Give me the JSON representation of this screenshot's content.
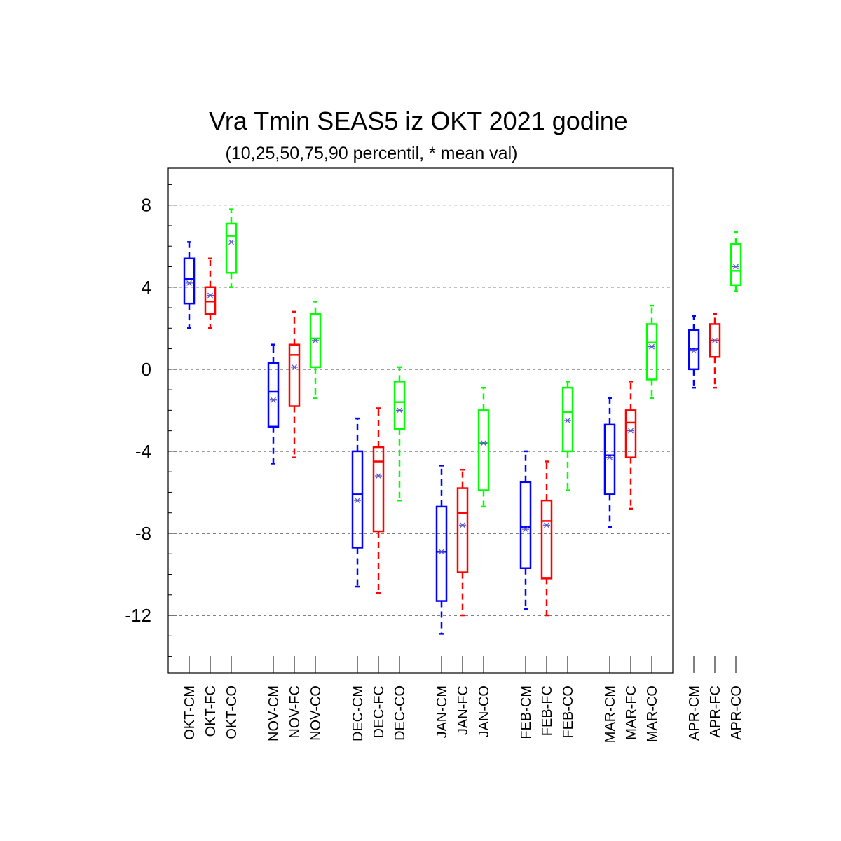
{
  "chart_data": {
    "type": "boxplot",
    "title": "Vra Tmin SEAS5 iz OKT 2021 godine",
    "subtitle": "(10,25,50,75,90 percentil, * mean val)",
    "xlabel": "",
    "ylabel": "",
    "ylim": [
      -14.8,
      9.8
    ],
    "yticks": [
      8,
      4,
      0,
      -4,
      -8,
      -12
    ],
    "ytick_labels": [
      "8",
      "4",
      "0",
      "-4",
      "-8",
      "-12"
    ],
    "grid": "dashed horizontal at major ticks",
    "series_colors": {
      "CM": "#0000ff",
      "FC": "#ff0000",
      "CO": "#00ff00"
    },
    "mean_marker_color": "#5555cc",
    "categories": [
      "OKT-CM",
      "OKT-FC",
      "OKT-CO",
      "NOV-CM",
      "NOV-FC",
      "NOV-CO",
      "DEC-CM",
      "DEC-FC",
      "DEC-CO",
      "JAN-CM",
      "JAN-FC",
      "JAN-CO",
      "FEB-CM",
      "FEB-FC",
      "FEB-CO",
      "MAR-CM",
      "MAR-FC",
      "MAR-CO",
      "APR-CM",
      "APR-FC",
      "APR-CO"
    ],
    "boxes": [
      {
        "label": "OKT-CM",
        "series": "CM",
        "p10": 2.0,
        "p25": 3.2,
        "p50": 4.4,
        "p75": 5.4,
        "p90": 6.2,
        "mean": 4.2
      },
      {
        "label": "OKT-FC",
        "series": "FC",
        "p10": 2.0,
        "p25": 2.7,
        "p50": 3.3,
        "p75": 4.0,
        "p90": 5.4,
        "mean": 3.6
      },
      {
        "label": "OKT-CO",
        "series": "CO",
        "p10": 4.0,
        "p25": 4.7,
        "p50": 6.5,
        "p75": 7.1,
        "p90": 7.8,
        "mean": 6.2
      },
      {
        "label": "NOV-CM",
        "series": "CM",
        "p10": -4.6,
        "p25": -2.8,
        "p50": -1.1,
        "p75": 0.3,
        "p90": 1.2,
        "mean": -1.5
      },
      {
        "label": "NOV-FC",
        "series": "FC",
        "p10": -4.3,
        "p25": -1.8,
        "p50": 0.7,
        "p75": 1.2,
        "p90": 2.8,
        "mean": 0.1
      },
      {
        "label": "NOV-CO",
        "series": "CO",
        "p10": -1.4,
        "p25": 0.1,
        "p50": 1.5,
        "p75": 2.7,
        "p90": 3.3,
        "mean": 1.4
      },
      {
        "label": "DEC-CM",
        "series": "CM",
        "p10": -10.6,
        "p25": -8.7,
        "p50": -6.1,
        "p75": -4.0,
        "p90": -2.4,
        "mean": -6.4
      },
      {
        "label": "DEC-FC",
        "series": "FC",
        "p10": -10.9,
        "p25": -7.9,
        "p50": -4.5,
        "p75": -3.8,
        "p90": -1.9,
        "mean": -5.2
      },
      {
        "label": "DEC-CO",
        "series": "CO",
        "p10": -6.4,
        "p25": -2.9,
        "p50": -1.6,
        "p75": -0.6,
        "p90": 0.1,
        "mean": -2.0
      },
      {
        "label": "JAN-CM",
        "series": "CM",
        "p10": -12.9,
        "p25": -11.3,
        "p50": -8.9,
        "p75": -6.7,
        "p90": -4.7,
        "mean": -8.9
      },
      {
        "label": "JAN-FC",
        "series": "FC",
        "p10": -12.0,
        "p25": -9.9,
        "p50": -7.0,
        "p75": -5.8,
        "p90": -4.9,
        "mean": -7.6
      },
      {
        "label": "JAN-CO",
        "series": "CO",
        "p10": -6.7,
        "p25": -5.9,
        "p50": -3.6,
        "p75": -2.0,
        "p90": -0.9,
        "mean": -3.6
      },
      {
        "label": "FEB-CM",
        "series": "CM",
        "p10": -11.7,
        "p25": -9.7,
        "p50": -7.7,
        "p75": -5.5,
        "p90": -4.0,
        "mean": -7.8
      },
      {
        "label": "FEB-FC",
        "series": "FC",
        "p10": -12.0,
        "p25": -10.2,
        "p50": -7.4,
        "p75": -6.4,
        "p90": -4.5,
        "mean": -7.6
      },
      {
        "label": "FEB-CO",
        "series": "CO",
        "p10": -5.9,
        "p25": -4.0,
        "p50": -2.1,
        "p75": -0.9,
        "p90": -0.6,
        "mean": -2.5
      },
      {
        "label": "MAR-CM",
        "series": "CM",
        "p10": -7.7,
        "p25": -6.1,
        "p50": -4.2,
        "p75": -2.7,
        "p90": -1.4,
        "mean": -4.3
      },
      {
        "label": "MAR-FC",
        "series": "FC",
        "p10": -6.8,
        "p25": -4.3,
        "p50": -2.6,
        "p75": -2.0,
        "p90": -0.6,
        "mean": -3.0
      },
      {
        "label": "MAR-CO",
        "series": "CO",
        "p10": -1.4,
        "p25": -0.5,
        "p50": 1.3,
        "p75": 2.2,
        "p90": 3.1,
        "mean": 1.1
      },
      {
        "label": "APR-CM",
        "series": "CM",
        "p10": -0.9,
        "p25": 0.0,
        "p50": 1.0,
        "p75": 1.9,
        "p90": 2.6,
        "mean": 0.9
      },
      {
        "label": "APR-FC",
        "series": "FC",
        "p10": -0.9,
        "p25": 0.6,
        "p50": 1.4,
        "p75": 2.2,
        "p90": 2.7,
        "mean": 1.4
      },
      {
        "label": "APR-CO",
        "series": "CO",
        "p10": 3.8,
        "p25": 4.1,
        "p50": 4.8,
        "p75": 6.1,
        "p90": 6.7,
        "mean": 5.0
      }
    ]
  }
}
